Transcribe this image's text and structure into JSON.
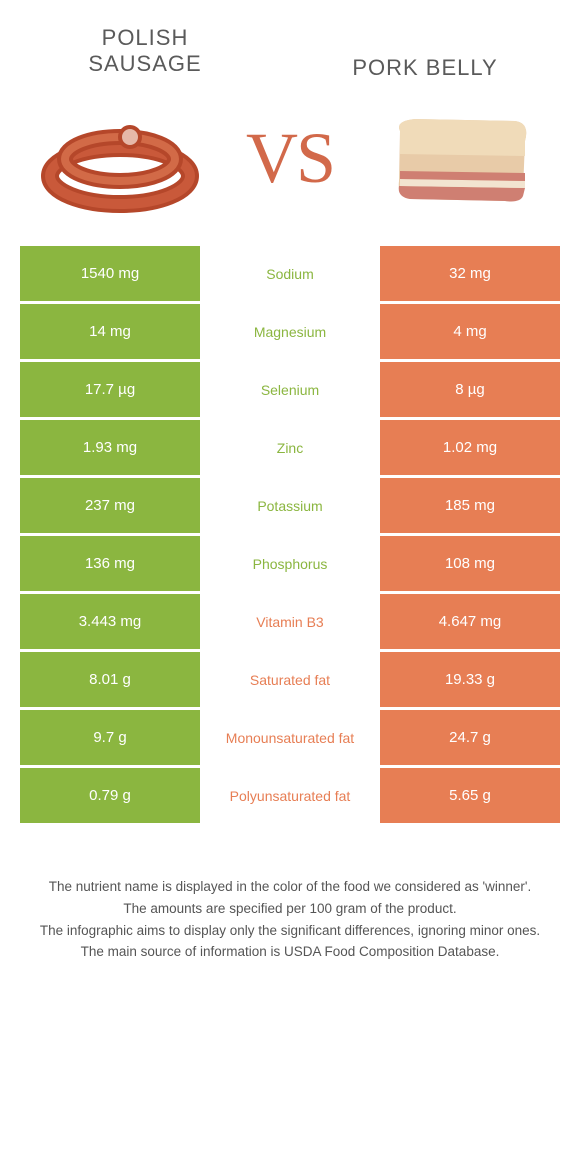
{
  "header": {
    "left_title": "Polish sausage",
    "right_title": "Pork Belly",
    "vs": "VS"
  },
  "colors": {
    "left": "#8bb640",
    "right": "#e77e54",
    "background": "#ffffff",
    "text": "#5a5a5a"
  },
  "rows": [
    {
      "label": "Sodium",
      "left": "1540 mg",
      "right": "32 mg",
      "winner": "left"
    },
    {
      "label": "Magnesium",
      "left": "14 mg",
      "right": "4 mg",
      "winner": "left"
    },
    {
      "label": "Selenium",
      "left": "17.7 µg",
      "right": "8 µg",
      "winner": "left"
    },
    {
      "label": "Zinc",
      "left": "1.93 mg",
      "right": "1.02 mg",
      "winner": "left"
    },
    {
      "label": "Potassium",
      "left": "237 mg",
      "right": "185 mg",
      "winner": "left"
    },
    {
      "label": "Phosphorus",
      "left": "136 mg",
      "right": "108 mg",
      "winner": "left"
    },
    {
      "label": "Vitamin B3",
      "left": "3.443 mg",
      "right": "4.647 mg",
      "winner": "right"
    },
    {
      "label": "Saturated fat",
      "left": "8.01 g",
      "right": "19.33 g",
      "winner": "right"
    },
    {
      "label": "Monounsaturated fat",
      "left": "9.7 g",
      "right": "24.7 g",
      "winner": "right"
    },
    {
      "label": "Polyunsaturated fat",
      "left": "0.79 g",
      "right": "5.65 g",
      "winner": "right"
    }
  ],
  "footer": {
    "line1": "The nutrient name is displayed in the color of the food we considered as 'winner'.",
    "line2": "The amounts are specified per 100 gram of the product.",
    "line3": "The infographic aims to display only the significant differences, ignoring minor ones.",
    "line4": "The main source of information is USDA Food Composition Database."
  }
}
